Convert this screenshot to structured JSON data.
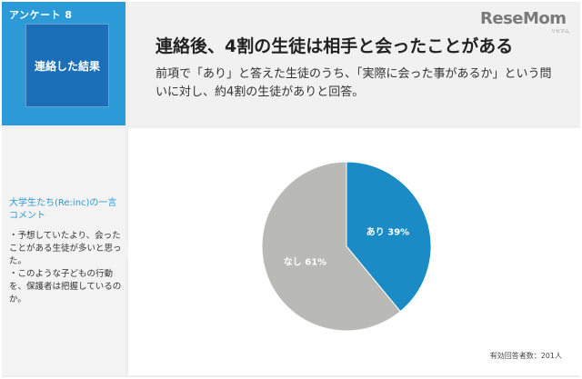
{
  "survey": {
    "number_label": "アンケート 8",
    "badge_label": "連絡した結果"
  },
  "header": {
    "headline": "連絡後、4割の生徒は相手と会ったことがある",
    "description": "前項で「あり」と答えた生徒のうち、「実際に会った事があるか」という問いに対し、約4割の生徒がありと回答。"
  },
  "brand": {
    "logo_text": "ReseMom",
    "logo_sub": "リセマム"
  },
  "comment": {
    "title": "大学生たち(Re:inc)の一言コメント",
    "body": "・予想していたより、会ったことがある生徒が多いと思った。\n・このような子どもの行動を、保護者は把握しているのか。"
  },
  "chart_data": {
    "type": "pie",
    "slices": [
      {
        "label": "あり 39%",
        "value": 39,
        "color": "#1b8bc6"
      },
      {
        "label": "なし 61%",
        "value": 61,
        "color": "#b9b9b5"
      }
    ],
    "start": "12 o'clock",
    "direction": "clockwise",
    "footnote": "有効回答者数：201人"
  },
  "colors": {
    "accent_blue": "#2b9ad6",
    "badge_blue": "#1a6fb8"
  }
}
